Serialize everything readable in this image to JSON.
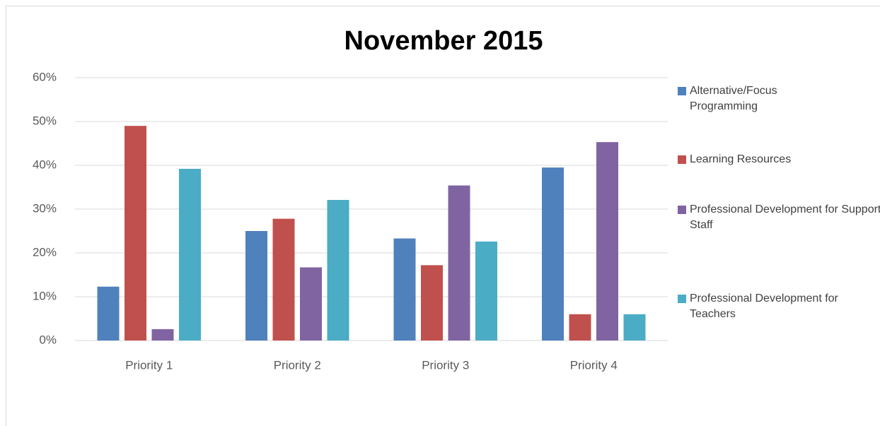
{
  "chart_data": {
    "type": "bar",
    "title": "November 2015",
    "categories": [
      "Priority 1",
      "Priority 2",
      "Priority 3",
      "Priority 4"
    ],
    "series": [
      {
        "name": "Alternative/Focus Programming",
        "color": "#4f81bd",
        "values": [
          12.3,
          25,
          23.3,
          39.5
        ]
      },
      {
        "name": "Learning Resources",
        "color": "#c0504d",
        "values": [
          49,
          27.8,
          17.2,
          6
        ]
      },
      {
        "name": "Professional Development for Support Staff",
        "color": "#8064a2",
        "values": [
          2.6,
          16.7,
          35.4,
          45.3
        ]
      },
      {
        "name": "Professional Development for Teachers",
        "color": "#4bacc6",
        "values": [
          39.2,
          32.1,
          22.6,
          6
        ]
      }
    ],
    "ylim": [
      0,
      60
    ],
    "yticks": [
      {
        "value": 0,
        "label": "0%"
      },
      {
        "value": 10,
        "label": "10%"
      },
      {
        "value": 20,
        "label": "20%"
      },
      {
        "value": 30,
        "label": "30%"
      },
      {
        "value": 40,
        "label": "40%"
      },
      {
        "value": 50,
        "label": "50%"
      },
      {
        "value": 60,
        "label": "60%"
      }
    ],
    "grid": true,
    "legend": "right"
  }
}
